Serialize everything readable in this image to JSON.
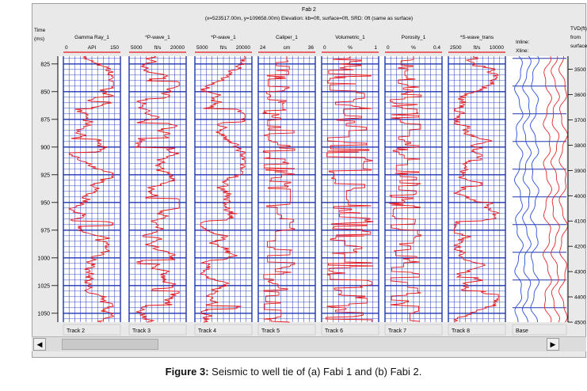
{
  "window": {
    "title": "Fab 2",
    "subtitle": "(x=523517.00m, y=109658.00m) Elevation: kb=0ft, surface=0ft, SRD: 0ft (same as surface)"
  },
  "caption": {
    "label": "Figure 3:",
    "text": " Seismic to well tie of (a) Fabi 1 and (b) Fabi 2."
  },
  "chart_data": {
    "type": "line",
    "title": "Fab 2",
    "left_axis": {
      "label_line1": "Time",
      "label_line2": "(ms)",
      "ticks": [
        825,
        850,
        875,
        900,
        925,
        950,
        975,
        1000,
        1025,
        1050
      ],
      "range": [
        818,
        1058
      ]
    },
    "right_axis": {
      "label_lines": [
        "TVD(ft)",
        "from",
        "surface"
      ],
      "ticks": [
        3500,
        3600,
        3700,
        3800,
        3900,
        4000,
        4100,
        4200,
        4300,
        4400,
        4500
      ]
    },
    "tracks": [
      {
        "name": "Gamma Ray_1",
        "unit": "API",
        "min": "0",
        "max": "150",
        "footer": "Track 2"
      },
      {
        "name": "*P-wave_1",
        "unit": "ft/s",
        "min": "5000",
        "max": "20000",
        "footer": "Track 3"
      },
      {
        "name": "*P-wave_1",
        "unit": "ft/s",
        "min": "5000",
        "max": "20000",
        "footer": "Track 4"
      },
      {
        "name": "Caliper_1",
        "unit": "cm",
        "min": "24",
        "max": "36",
        "footer": "Track 5"
      },
      {
        "name": "Volumetric_1",
        "unit": "%",
        "min": "0",
        "max": "1",
        "footer": "Track 6"
      },
      {
        "name": "Porosity_1",
        "unit": "%",
        "min": "0",
        "max": "0.4",
        "footer": "Track 7"
      },
      {
        "name": "*S-wave_trans",
        "unit": "ft/s",
        "min": "2500",
        "max": "10000",
        "footer": "Track 8"
      }
    ],
    "seismic_track": {
      "labels": [
        "Inline:",
        "Xline:"
      ],
      "footer": "Base",
      "colors": [
        "#2a4fd6",
        "#e0282a"
      ]
    },
    "log_color": "#e8141b",
    "grid_color": "#1f35b0"
  },
  "scrollbar": {
    "left_arrow": "◀",
    "right_arrow": "▶"
  }
}
